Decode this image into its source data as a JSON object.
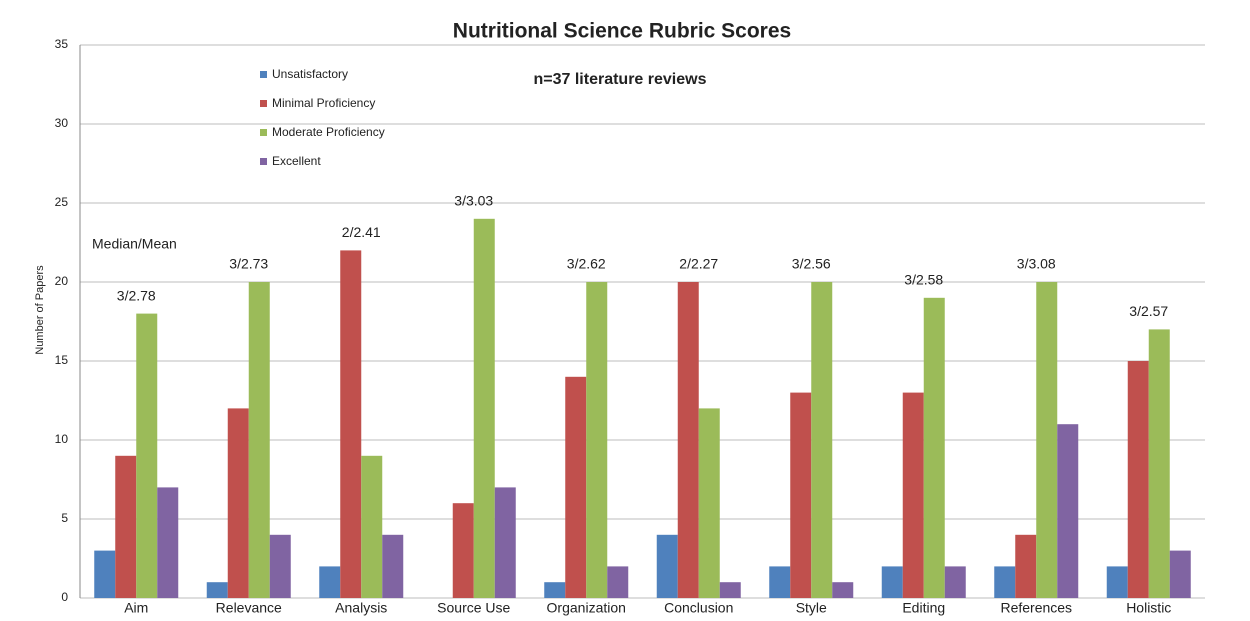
{
  "chart_data": {
    "type": "bar",
    "title": "Nutritional Science Rubric Scores",
    "subtitle": "n=37 literature reviews",
    "y_label": "Number of Papers",
    "annotation": "Median/Mean",
    "categories": [
      "Aim",
      "Relevance",
      "Analysis",
      "Source Use",
      "Organization",
      "Conclusion",
      "Style",
      "Editing",
      "References",
      "Holistic"
    ],
    "category_labels": [
      "3/2.78",
      "3/2.73",
      "2/2.41",
      "3/3.03",
      "3/2.62",
      "2/2.27",
      "3/2.56",
      "3/2.58",
      "3/3.08",
      "3/2.57"
    ],
    "series": [
      {
        "name": "Unsatisfactory",
        "color": "#4f81bd",
        "values": [
          3,
          1,
          2,
          0,
          1,
          4,
          2,
          2,
          2,
          2
        ]
      },
      {
        "name": "Minimal Proficiency",
        "color": "#c0504d",
        "values": [
          9,
          12,
          22,
          6,
          14,
          20,
          13,
          13,
          4,
          15
        ]
      },
      {
        "name": "Moderate Proficiency",
        "color": "#9bbb59",
        "values": [
          18,
          20,
          9,
          24,
          20,
          12,
          20,
          19,
          20,
          17
        ]
      },
      {
        "name": "Excellent",
        "color": "#8064a2",
        "values": [
          7,
          4,
          4,
          7,
          2,
          1,
          1,
          2,
          11,
          3
        ]
      }
    ],
    "ylim": [
      0,
      35
    ],
    "yticks": [
      0,
      5,
      10,
      15,
      20,
      25,
      30,
      35
    ],
    "grid": true,
    "legend": "top-left"
  }
}
